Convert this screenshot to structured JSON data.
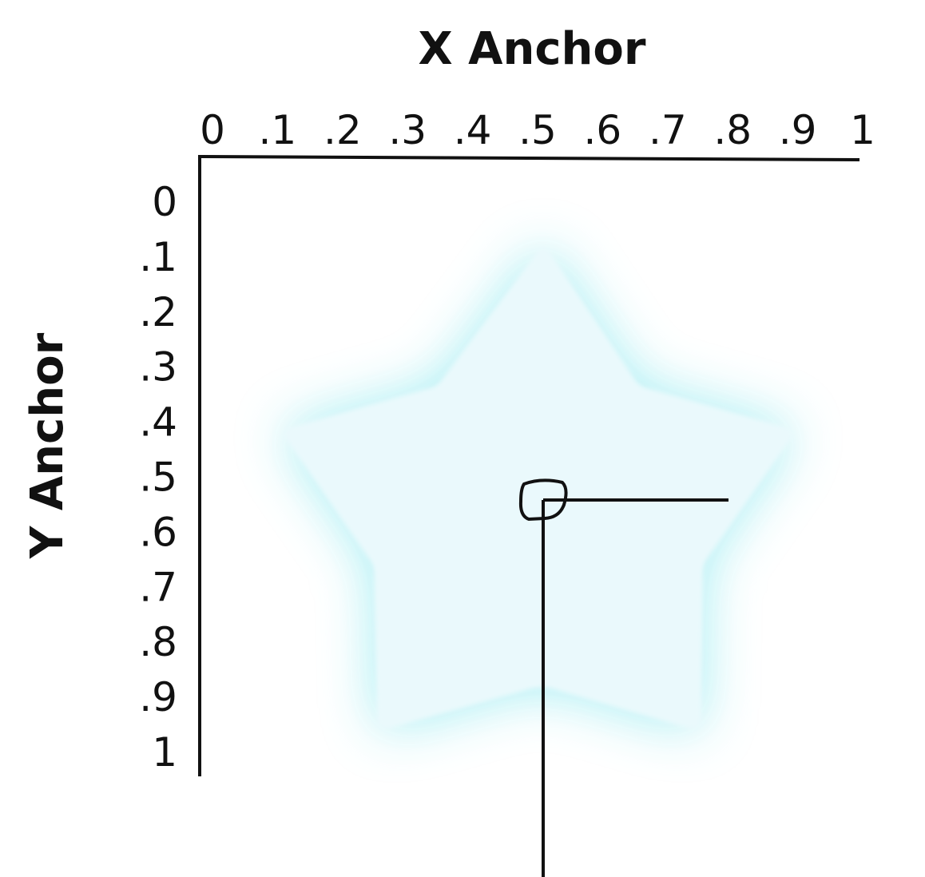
{
  "diagram": {
    "x_axis": {
      "title": "X Anchor",
      "ticks": [
        "0",
        ".1",
        ".2",
        ".3",
        ".4",
        ".5",
        ".6",
        ".7",
        ".8",
        ".9",
        "1"
      ]
    },
    "y_axis": {
      "title": "Y Anchor",
      "ticks": [
        "0",
        ".1",
        ".2",
        ".3",
        ".4",
        ".5",
        ".6",
        ".7",
        ".8",
        ".9",
        "1"
      ]
    },
    "anchor_point": {
      "x": 0.52,
      "y": 0.55
    },
    "shape": "star",
    "colors": {
      "glow": "#9fecf2",
      "star_fill": "#eaf9fc",
      "line": "#111111"
    }
  }
}
